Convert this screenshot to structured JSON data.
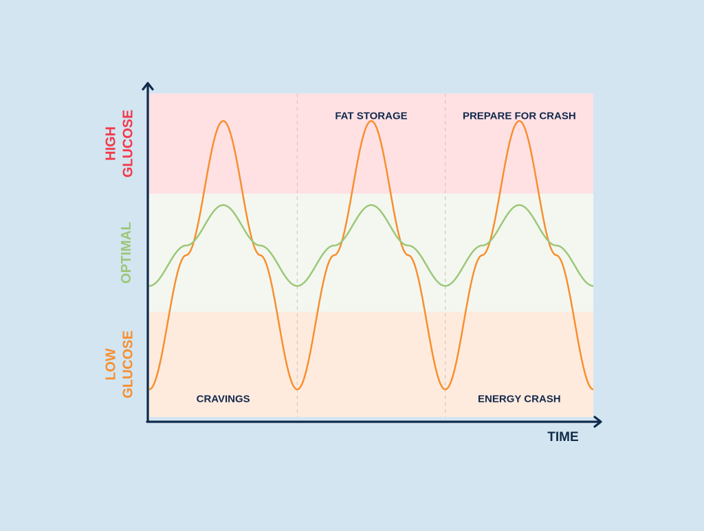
{
  "chart_data": {
    "type": "line",
    "title": "",
    "xlabel": "TIME",
    "ylabel": "",
    "grid": false,
    "legend": "none",
    "x_range": [
      0,
      3
    ],
    "y_range": [
      0,
      1
    ],
    "zones": [
      {
        "name": "HIGH\nGLUCOSE",
        "lines": [
          "HIGH",
          "GLUCOSE"
        ],
        "range": [
          0.69,
          1.0
        ],
        "fill": "#ffe1e4",
        "label_color": "#f2394a"
      },
      {
        "name": "OPTIMAL",
        "lines": [
          "OPTIMAL"
        ],
        "range": [
          0.325,
          0.69
        ],
        "fill": "#f4f7f0",
        "label_color": "#9cc779"
      },
      {
        "name": "LOW\nGLUCOSE",
        "lines": [
          "LOW",
          "GLUCOSE"
        ],
        "range": [
          0.0,
          0.325
        ],
        "fill": "#ffebde",
        "label_color": "#f78f2e"
      }
    ],
    "dividers": [
      1,
      2
    ],
    "series": [
      {
        "color": "#f78f2e",
        "x": [
          0,
          0.25,
          0.5,
          0.75,
          1,
          1.25,
          1.5,
          1.75,
          2,
          2.25,
          2.5,
          2.75,
          3
        ],
        "y": [
          0.085,
          0.5,
          0.915,
          0.5,
          0.085,
          0.5,
          0.915,
          0.5,
          0.085,
          0.5,
          0.915,
          0.5,
          0.085
        ]
      },
      {
        "color": "#9cc779",
        "x": [
          0,
          0.25,
          0.5,
          0.75,
          1,
          1.25,
          1.5,
          1.75,
          2,
          2.25,
          2.5,
          2.75,
          3
        ],
        "y": [
          0.405,
          0.53,
          0.655,
          0.53,
          0.405,
          0.53,
          0.655,
          0.53,
          0.405,
          0.53,
          0.655,
          0.53,
          0.405
        ]
      }
    ],
    "annotations": [
      {
        "text": "FAT STORAGE",
        "x": 1.5,
        "y": 0.93
      },
      {
        "text": "PREPARE FOR CRASH",
        "x": 2.5,
        "y": 0.93
      },
      {
        "text": "CRAVINGS",
        "x": 0.5,
        "y": 0.055
      },
      {
        "text": "ENERGY CRASH",
        "x": 2.5,
        "y": 0.055
      }
    ],
    "colors": {
      "axis": "#0f2a4a",
      "annotation_text": "#13294b",
      "divider": "#d3c6c6"
    }
  }
}
